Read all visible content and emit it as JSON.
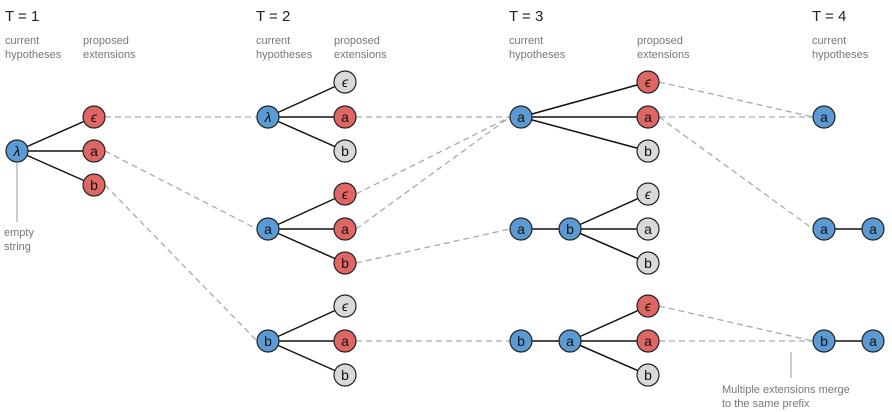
{
  "steps": [
    {
      "title": "T = 1",
      "current": "current\nhypotheses",
      "proposed": "proposed\nextensions"
    },
    {
      "title": "T = 2",
      "current": "current\nhypotheses",
      "proposed": "proposed\nextensions"
    },
    {
      "title": "T = 3",
      "current": "current\nhypotheses",
      "proposed": "proposed\nextensions"
    },
    {
      "title": "T = 4",
      "current": "current\nhypotheses"
    }
  ],
  "annotations": {
    "empty_string": "empty\nstring",
    "merge_note": "Multiple extensions merge\nto the same prefix"
  },
  "colors": {
    "hypothesis": "#5b9bd5",
    "selected": "#e06666",
    "rejected": "#d9d9d9",
    "edge": "#111111",
    "dashed": "#aaaaaa"
  },
  "symbols": {
    "lambda": "λ",
    "epsilon": "ϵ",
    "a": "a",
    "b": "b"
  },
  "nodes": [
    {
      "id": "t1_root",
      "sym": "lambda",
      "kind": "hypothesis"
    },
    {
      "id": "t1_e",
      "sym": "epsilon",
      "kind": "selected"
    },
    {
      "id": "t1_a",
      "sym": "a",
      "kind": "selected"
    },
    {
      "id": "t1_b",
      "sym": "b",
      "kind": "selected"
    },
    {
      "id": "t2_h1",
      "sym": "lambda",
      "kind": "hypothesis"
    },
    {
      "id": "t2_h1_e",
      "sym": "epsilon",
      "kind": "rejected"
    },
    {
      "id": "t2_h1_a",
      "sym": "a",
      "kind": "selected"
    },
    {
      "id": "t2_h1_b",
      "sym": "b",
      "kind": "rejected"
    },
    {
      "id": "t2_h2",
      "sym": "a",
      "kind": "hypothesis"
    },
    {
      "id": "t2_h2_e",
      "sym": "epsilon",
      "kind": "selected"
    },
    {
      "id": "t2_h2_a",
      "sym": "a",
      "kind": "selected"
    },
    {
      "id": "t2_h2_b",
      "sym": "b",
      "kind": "selected"
    },
    {
      "id": "t2_h3",
      "sym": "b",
      "kind": "hypothesis"
    },
    {
      "id": "t2_h3_e",
      "sym": "epsilon",
      "kind": "rejected"
    },
    {
      "id": "t2_h3_a",
      "sym": "a",
      "kind": "selected"
    },
    {
      "id": "t2_h3_b",
      "sym": "b",
      "kind": "rejected"
    },
    {
      "id": "t3_h1",
      "sym": "a",
      "kind": "hypothesis"
    },
    {
      "id": "t3_h1_e",
      "sym": "epsilon",
      "kind": "selected"
    },
    {
      "id": "t3_h1_a",
      "sym": "a",
      "kind": "selected"
    },
    {
      "id": "t3_h1_b",
      "sym": "b",
      "kind": "rejected"
    },
    {
      "id": "t3_h2p",
      "sym": "a",
      "kind": "hypothesis"
    },
    {
      "id": "t3_h2",
      "sym": "b",
      "kind": "hypothesis"
    },
    {
      "id": "t3_h2_e",
      "sym": "epsilon",
      "kind": "rejected"
    },
    {
      "id": "t3_h2_a",
      "sym": "a",
      "kind": "rejected"
    },
    {
      "id": "t3_h2_b",
      "sym": "b",
      "kind": "rejected"
    },
    {
      "id": "t3_h3p",
      "sym": "b",
      "kind": "hypothesis"
    },
    {
      "id": "t3_h3",
      "sym": "a",
      "kind": "hypothesis"
    },
    {
      "id": "t3_h3_e",
      "sym": "epsilon",
      "kind": "selected"
    },
    {
      "id": "t3_h3_a",
      "sym": "a",
      "kind": "selected"
    },
    {
      "id": "t3_h3_b",
      "sym": "b",
      "kind": "rejected"
    },
    {
      "id": "t4_h1",
      "sym": "a",
      "kind": "hypothesis"
    },
    {
      "id": "t4_h2p",
      "sym": "a",
      "kind": "hypothesis"
    },
    {
      "id": "t4_h2",
      "sym": "a",
      "kind": "hypothesis"
    },
    {
      "id": "t4_h3p",
      "sym": "b",
      "kind": "hypothesis"
    },
    {
      "id": "t4_h3",
      "sym": "a",
      "kind": "hypothesis"
    }
  ],
  "edges": [
    [
      "t1_root",
      "t1_e"
    ],
    [
      "t1_root",
      "t1_a"
    ],
    [
      "t1_root",
      "t1_b"
    ],
    [
      "t2_h1",
      "t2_h1_e"
    ],
    [
      "t2_h1",
      "t2_h1_a"
    ],
    [
      "t2_h1",
      "t2_h1_b"
    ],
    [
      "t2_h2",
      "t2_h2_e"
    ],
    [
      "t2_h2",
      "t2_h2_a"
    ],
    [
      "t2_h2",
      "t2_h2_b"
    ],
    [
      "t2_h3",
      "t2_h3_e"
    ],
    [
      "t2_h3",
      "t2_h3_a"
    ],
    [
      "t2_h3",
      "t2_h3_b"
    ],
    [
      "t3_h1",
      "t3_h1_e"
    ],
    [
      "t3_h1",
      "t3_h1_a"
    ],
    [
      "t3_h1",
      "t3_h1_b"
    ],
    [
      "t3_h2p",
      "t3_h2"
    ],
    [
      "t3_h2",
      "t3_h2_e"
    ],
    [
      "t3_h2",
      "t3_h2_a"
    ],
    [
      "t3_h2",
      "t3_h2_b"
    ],
    [
      "t3_h3p",
      "t3_h3"
    ],
    [
      "t3_h3",
      "t3_h3_e"
    ],
    [
      "t3_h3",
      "t3_h3_a"
    ],
    [
      "t3_h3",
      "t3_h3_b"
    ],
    [
      "t4_h2p",
      "t4_h2"
    ],
    [
      "t4_h3p",
      "t4_h3"
    ]
  ],
  "dashed_links": [
    [
      "t1_e",
      "t2_h1"
    ],
    [
      "t1_a",
      "t2_h2"
    ],
    [
      "t1_b",
      "t2_h3"
    ],
    [
      "t2_h1_a",
      "t3_h1"
    ],
    [
      "t2_h2_e",
      "t3_h1"
    ],
    [
      "t2_h2_a",
      "t3_h1"
    ],
    [
      "t2_h2_b",
      "t3_h2p"
    ],
    [
      "t2_h3_a",
      "t3_h3p"
    ],
    [
      "t3_h1_e",
      "t4_h1"
    ],
    [
      "t3_h1_a",
      "t4_h1"
    ],
    [
      "t3_h1_a",
      "t4_h2p"
    ],
    [
      "t3_h3_e",
      "t4_h3p"
    ],
    [
      "t3_h3_a",
      "t4_h3p"
    ]
  ]
}
